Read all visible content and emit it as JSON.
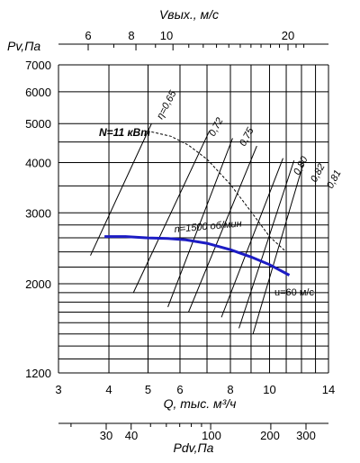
{
  "chart_data": {
    "type": "line",
    "x_axis": {
      "label": "Q, тыс. м³/ч",
      "scale": "log",
      "range": [
        3,
        14
      ],
      "ticks": [
        "3",
        "4",
        "5",
        "6",
        "8",
        "10",
        "14"
      ]
    },
    "y_axis": {
      "label": "Pv,Па",
      "scale": "log",
      "range": [
        1200,
        7000
      ],
      "ticks": [
        "1200",
        "2000",
        "3000",
        "4000",
        "5000",
        "6000",
        "7000"
      ]
    },
    "top_axis": {
      "label": "Vвых., м/с",
      "ticks": [
        "6",
        "8",
        "10",
        "20"
      ]
    },
    "bottom_axis2": {
      "label": "Pdv,Па",
      "ticks": [
        "30",
        "40",
        "100",
        "200",
        "300"
      ]
    },
    "grid": true,
    "series": [
      {
        "name": "n=1500 об/мин",
        "color": "#1c1cc4",
        "x": [
          3.9,
          4.4,
          5.0,
          5.6,
          6.2,
          7.0,
          8.0,
          9.0,
          10.0,
          11.2
        ],
        "y": [
          2620,
          2620,
          2600,
          2590,
          2570,
          2520,
          2430,
          2330,
          2230,
          2100
        ]
      },
      {
        "name": "N=11 кВт",
        "style": "dashed",
        "color": "#000000",
        "x": [
          5.1,
          5.7,
          6.3,
          7.0,
          8.0,
          9.0,
          10.0,
          11.0
        ],
        "y": [
          4770,
          4650,
          4420,
          4080,
          3530,
          3020,
          2620,
          2400
        ]
      }
    ],
    "annotations": [
      "η=0,65",
      "0,72",
      "0,75",
      "0,80",
      "0,82",
      "0,81",
      "N=11 кВт",
      "n=1500 об/мин",
      "u=60 м/с"
    ]
  },
  "colors": {
    "grid": "#000000",
    "curve": "#1c1cc4",
    "background": "#ffffff"
  }
}
